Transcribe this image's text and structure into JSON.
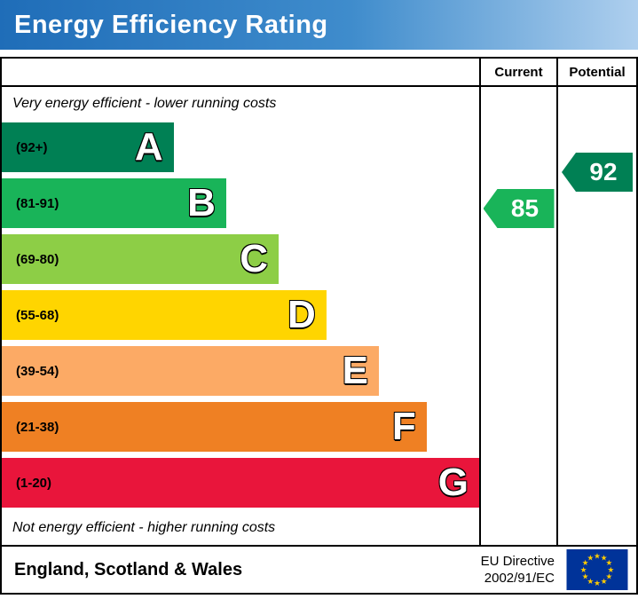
{
  "title": "Energy Efficiency Rating",
  "table": {
    "current_label": "Current",
    "potential_label": "Potential",
    "top_caption": "Very energy efficient - lower running costs",
    "bottom_caption": "Not energy efficient - higher running costs"
  },
  "bands": [
    {
      "letter": "A",
      "range_label": "(92+)",
      "min": 92,
      "max": 100,
      "color": "#008054",
      "width_pct": 36
    },
    {
      "letter": "B",
      "range_label": "(81-91)",
      "min": 81,
      "max": 91,
      "color": "#19b459",
      "width_pct": 47
    },
    {
      "letter": "C",
      "range_label": "(69-80)",
      "min": 69,
      "max": 80,
      "color": "#8dce46",
      "width_pct": 58
    },
    {
      "letter": "D",
      "range_label": "(55-68)",
      "min": 55,
      "max": 68,
      "color": "#ffd500",
      "width_pct": 68
    },
    {
      "letter": "E",
      "range_label": "(39-54)",
      "min": 39,
      "max": 54,
      "color": "#fcaa65",
      "width_pct": 79
    },
    {
      "letter": "F",
      "range_label": "(21-38)",
      "min": 21,
      "max": 38,
      "color": "#ef8023",
      "width_pct": 89
    },
    {
      "letter": "G",
      "range_label": "(1-20)",
      "min": 1,
      "max": 20,
      "color": "#e9153b",
      "width_pct": 100
    }
  ],
  "columns": {
    "current": {
      "value": 85,
      "color": "#19b459"
    },
    "potential": {
      "value": 92,
      "color": "#008054"
    }
  },
  "footer": {
    "region": "England, Scotland & Wales",
    "directive_line1": "EU Directive",
    "directive_line2": "2002/91/EC",
    "flag_background": "#003399",
    "flag_star_color": "#ffcc00"
  },
  "chart_data": {
    "type": "bar",
    "title": "Energy Efficiency Rating",
    "categories": [
      "A",
      "B",
      "C",
      "D",
      "E",
      "F",
      "G"
    ],
    "band_ranges": [
      "92+",
      "81-91",
      "69-80",
      "55-68",
      "39-54",
      "21-38",
      "1-20"
    ],
    "band_colors": [
      "#008054",
      "#19b459",
      "#8dce46",
      "#ffd500",
      "#fcaa65",
      "#ef8023",
      "#e9153b"
    ],
    "values": [
      36,
      47,
      58,
      68,
      79,
      89,
      100
    ],
    "current_rating": 85,
    "current_band": "B",
    "potential_rating": 92,
    "potential_band": "A",
    "top_caption": "Very energy efficient - lower running costs",
    "bottom_caption": "Not energy efficient - higher running costs",
    "legend_position": "top-right-columns"
  }
}
